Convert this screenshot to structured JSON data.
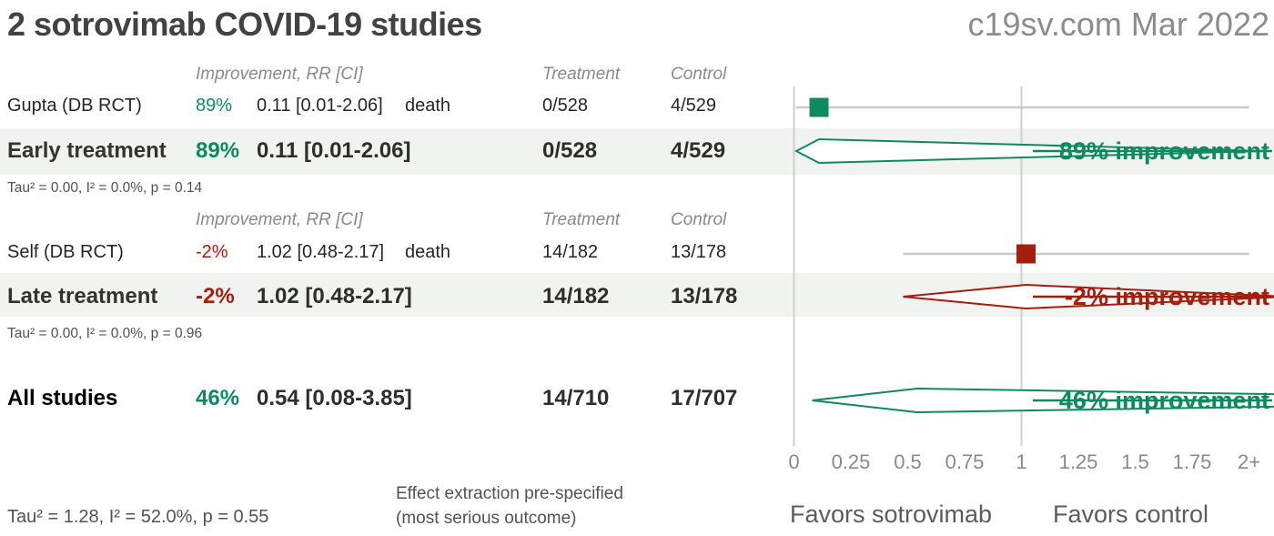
{
  "header": {
    "title": "2 sotrovimab COVID-19 studies",
    "source": "c19sv.com Mar 2022"
  },
  "columns": {
    "improvement": "Improvement, RR [CI]",
    "treatment": "Treatment",
    "control": "Control"
  },
  "colors": {
    "green": "#0e8a5e",
    "red": "#a51d0c",
    "band": "#f0f3ef",
    "grid": "#cfcfcf",
    "ci_line": "#c9c9c9"
  },
  "footer": {
    "stats": "Tau² = 1.28, I² = 52.0%, p = 0.55",
    "note_line1": "Effect extraction pre-specified",
    "note_line2": "(most serious outcome)",
    "favors_left": "Favors sotrovimab",
    "favors_right": "Favors control"
  },
  "chart_data": {
    "type": "forest",
    "x_axis": {
      "tick_values": [
        0,
        0.25,
        0.5,
        0.75,
        1,
        1.25,
        1.5,
        1.75,
        2
      ],
      "tick_labels": [
        "0",
        "0.25",
        "0.5",
        "0.75",
        "1",
        "1.25",
        "1.5",
        "1.75",
        "2+"
      ],
      "gridlines_at": [
        0,
        1
      ],
      "clip_max": 2
    },
    "studies": [
      {
        "name": "Gupta (DB RCT)",
        "improvement": "89%",
        "rr": 0.11,
        "ci_lower": 0.01,
        "ci_upper": 2.06,
        "rr_ci": "0.11 [0.01-2.06]",
        "outcome": "death",
        "treatment": "0/528",
        "control": "4/529",
        "color": "green"
      },
      {
        "name": "Self (DB RCT)",
        "improvement": "-2%",
        "rr": 1.02,
        "ci_lower": 0.48,
        "ci_upper": 2.17,
        "rr_ci": "1.02 [0.48-2.17]",
        "outcome": "death",
        "treatment": "14/182",
        "control": "13/178",
        "color": "red"
      }
    ],
    "summaries": [
      {
        "name": "Early treatment",
        "improvement": "89%",
        "rr": 0.11,
        "ci_lower": 0.01,
        "ci_upper": 2.06,
        "rr_ci": "0.11 [0.01-2.06]",
        "treatment": "0/528",
        "control": "4/529",
        "label": "89% improvement",
        "color": "green",
        "stats": "Tau² = 0.00, I² = 0.0%, p = 0.14"
      },
      {
        "name": "Late treatment",
        "improvement": "-2%",
        "rr": 1.02,
        "ci_lower": 0.48,
        "ci_upper": 2.17,
        "rr_ci": "1.02 [0.48-2.17]",
        "treatment": "14/182",
        "control": "13/178",
        "label": "-2% improvement",
        "color": "red",
        "stats": "Tau² = 0.00, I² = 0.0%, p = 0.96"
      },
      {
        "name": "All studies",
        "improvement": "46%",
        "rr": 0.54,
        "ci_lower": 0.08,
        "ci_upper": 3.85,
        "rr_ci": "0.54 [0.08-3.85]",
        "treatment": "14/710",
        "control": "17/707",
        "label": "46% improvement",
        "color": "green",
        "stats": "Tau² = 1.28, I² = 52.0%, p = 0.55"
      }
    ]
  }
}
